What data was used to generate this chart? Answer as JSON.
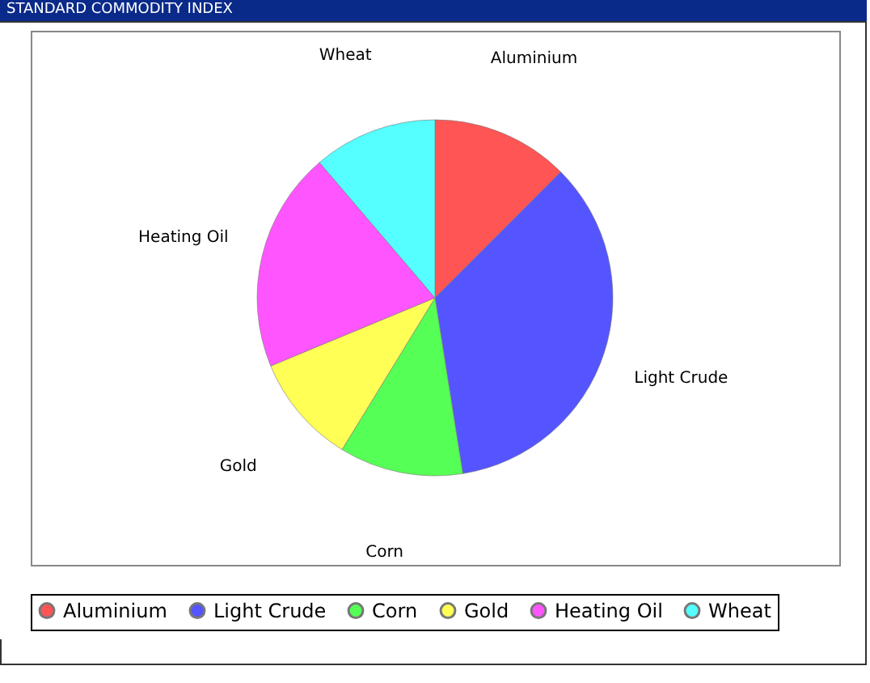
{
  "chart_data": {
    "type": "pie",
    "title": "STANDARD COMMODITY INDEX",
    "categories": [
      "Aluminium",
      "Light Crude",
      "Corn",
      "Gold",
      "Heating Oil",
      "Wheat"
    ],
    "values": [
      12.5,
      35,
      11.25,
      10,
      20,
      11.25
    ],
    "colors": [
      "#ff5555",
      "#5555ff",
      "#55ff55",
      "#ffff55",
      "#ff55ff",
      "#55ffff"
    ],
    "legend": "bottom"
  }
}
